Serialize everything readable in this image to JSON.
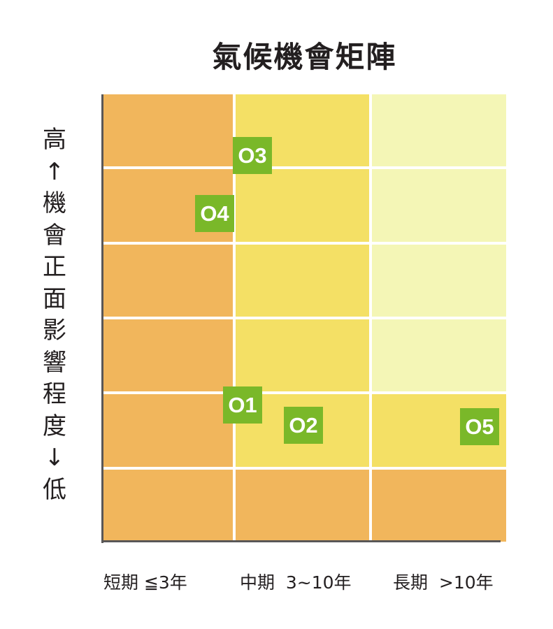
{
  "title": "氣候機會矩陣",
  "y_axis_label": [
    "高",
    "↑",
    "機",
    "會",
    "正",
    "面",
    "影",
    "響",
    "程",
    "度",
    "↓",
    "低"
  ],
  "x_axis_labels": [
    "短期 ≦3年",
    "中期  3~10年",
    "長期  >10年"
  ],
  "colors": {
    "short_term": "#f1b65c",
    "mid_term": "#f4e065",
    "long_term": "#f4f6b6",
    "tag": "#7ab829"
  },
  "grid": [
    [
      "short_term",
      "mid_term",
      "long_term"
    ],
    [
      "short_term",
      "mid_term",
      "long_term"
    ],
    [
      "short_term",
      "mid_term",
      "long_term"
    ],
    [
      "short_term",
      "mid_term",
      "long_term"
    ],
    [
      "short_term",
      "mid_term",
      "mid_term"
    ],
    [
      "short_term",
      "short_term",
      "short_term"
    ]
  ],
  "opportunities": [
    {
      "label": "O3"
    },
    {
      "label": "O4"
    },
    {
      "label": "O1"
    },
    {
      "label": "O2"
    },
    {
      "label": "O5"
    }
  ]
}
